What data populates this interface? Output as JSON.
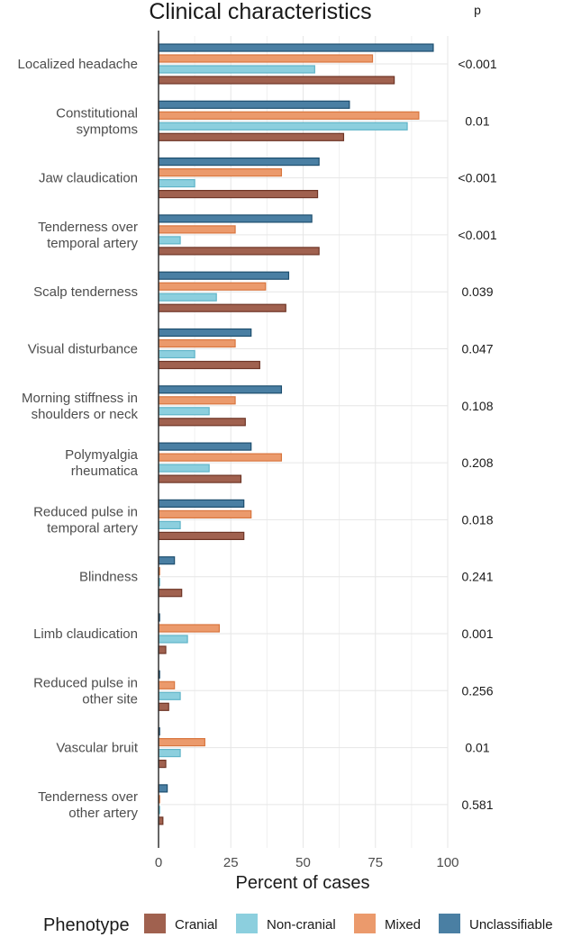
{
  "chart_data": {
    "type": "bar",
    "orientation": "horizontal",
    "title": "Clinical characteristics",
    "p_header": "p",
    "xlabel": "Percent of cases",
    "xlim": [
      0,
      100
    ],
    "xticks": [
      0,
      25,
      50,
      75,
      100
    ],
    "grid": true,
    "legend": {
      "title": "Phenotype",
      "position": "bottom",
      "entries": [
        "Cranial",
        "Non-cranial",
        "Mixed",
        "Unclassifiable"
      ]
    },
    "categories": [
      [
        "Localized headache"
      ],
      [
        "Constitutional",
        "symptoms"
      ],
      [
        "Jaw claudication"
      ],
      [
        "Tenderness over",
        "temporal artery"
      ],
      [
        "Scalp tenderness"
      ],
      [
        "Visual disturbance"
      ],
      [
        "Morning stiffness in",
        "shoulders or neck"
      ],
      [
        "Polymyalgia",
        "rheumatica"
      ],
      [
        "Reduced pulse in",
        "temporal artery"
      ],
      [
        "Blindness"
      ],
      [
        "Limb claudication"
      ],
      [
        "Reduced pulse in",
        "other site"
      ],
      [
        "Vascular bruit"
      ],
      [
        "Tenderness over",
        "other artery"
      ]
    ],
    "p_values": [
      "<0.001",
      "0.01",
      "<0.001",
      "<0.001",
      "0.039",
      "0.047",
      "0.108",
      "0.208",
      "0.018",
      "0.241",
      "0.001",
      "0.256",
      "0.01",
      "0.581"
    ],
    "series": [
      {
        "name": "Unclassifiable",
        "color": "#4a7fa3",
        "edge": "#1d4e6e",
        "values": [
          95,
          66,
          55.5,
          53,
          45,
          32,
          42.5,
          32,
          29.5,
          5.5,
          0,
          0,
          0,
          3
        ]
      },
      {
        "name": "Mixed",
        "color": "#eb9a6c",
        "edge": "#d8763f",
        "values": [
          74,
          90,
          42.5,
          26.5,
          37,
          26.5,
          26.5,
          42.5,
          32,
          0,
          21,
          5.5,
          16,
          0
        ]
      },
      {
        "name": "Non-cranial",
        "color": "#8ccfde",
        "edge": "#5fb4c8",
        "values": [
          54,
          86,
          12.5,
          7.5,
          20,
          12.5,
          17.5,
          17.5,
          7.5,
          0,
          10,
          7.5,
          7.5,
          0
        ]
      },
      {
        "name": "Cranial",
        "color": "#a0614f",
        "edge": "#6e3526",
        "values": [
          81.5,
          64,
          55,
          55.5,
          44,
          35,
          30,
          28.5,
          29.5,
          8,
          2.5,
          3.5,
          2.5,
          1.5
        ]
      }
    ]
  }
}
